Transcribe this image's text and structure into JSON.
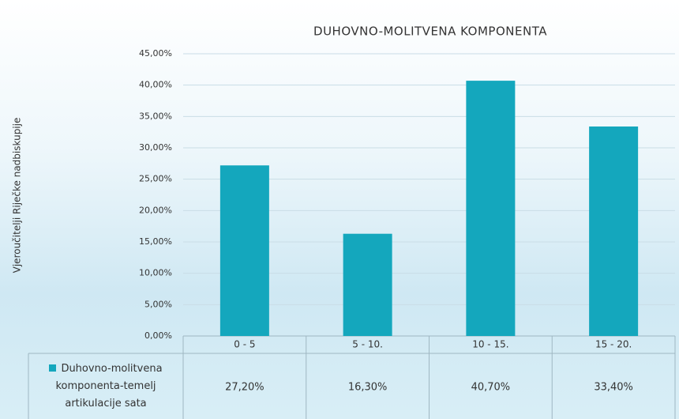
{
  "chart_data": {
    "type": "bar",
    "title": "DUHOVNO-MOLITVENA KOMPONENTA",
    "y_label": "Vjeroučitelji Riječke nadbiskupije",
    "categories": [
      "0 - 5",
      "5 - 10.",
      "10 - 15.",
      "15 - 20."
    ],
    "series": [
      {
        "name": "Duhovno-molitvena komponenta-temelj artikulacije sata",
        "color": "#14a7bd",
        "values": [
          27.2,
          16.3,
          40.7,
          33.4
        ],
        "value_labels": [
          "27,20%",
          "16,30%",
          "40,70%",
          "33,40%"
        ]
      }
    ],
    "ylim": [
      0,
      45
    ],
    "yticks": [
      {
        "value": 0,
        "label": "0,00%"
      },
      {
        "value": 5,
        "label": "5,00%"
      },
      {
        "value": 10,
        "label": "10,00%"
      },
      {
        "value": 15,
        "label": "15,00%"
      },
      {
        "value": 20,
        "label": "20,00%"
      },
      {
        "value": 25,
        "label": "25,00%"
      },
      {
        "value": 30,
        "label": "30,00%"
      },
      {
        "value": 35,
        "label": "35,00%"
      },
      {
        "value": 40,
        "label": "40,00%"
      },
      {
        "value": 45,
        "label": "45,00%"
      }
    ],
    "grid": true
  }
}
